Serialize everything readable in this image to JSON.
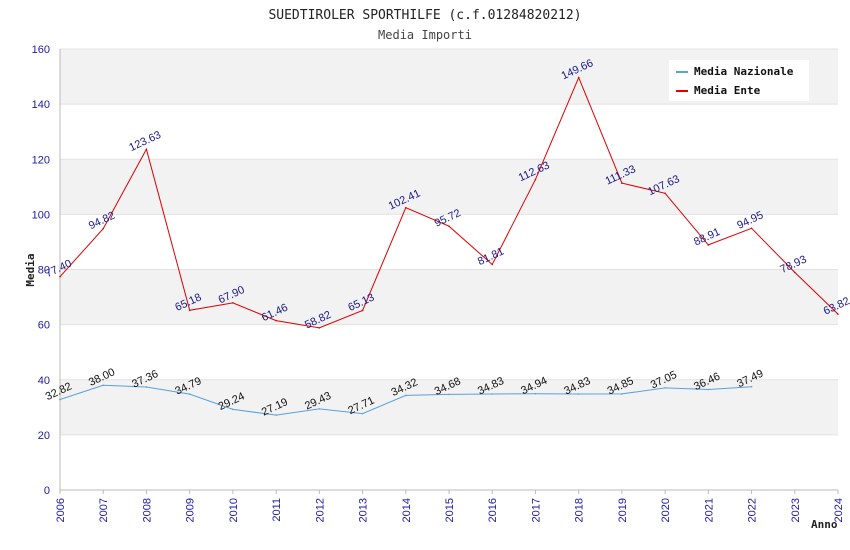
{
  "chart_data": {
    "type": "line",
    "title": "SUEDTIROLER SPORTHILFE (c.f.01284820212)",
    "subtitle": "Media Importi",
    "xlabel": "Anno",
    "ylabel": "Media",
    "ylim": [
      0,
      160
    ],
    "yticks": [
      "0",
      "20",
      "40",
      "60",
      "80",
      "100",
      "120",
      "140",
      "160"
    ],
    "x": [
      "2006",
      "2007",
      "2008",
      "2009",
      "2010",
      "2011",
      "2012",
      "2013",
      "2014",
      "2015",
      "2016",
      "2017",
      "2018",
      "2019",
      "2020",
      "2021",
      "2022",
      "2023",
      "2024"
    ],
    "series": [
      {
        "name": "Media Nazionale",
        "color": "#5aa0e0",
        "label_color": "#111111",
        "values": [
          32.82,
          38.0,
          37.36,
          34.79,
          29.24,
          27.19,
          29.43,
          27.71,
          34.32,
          34.68,
          34.83,
          34.94,
          34.83,
          34.85,
          37.05,
          36.46,
          37.49,
          null,
          null
        ],
        "labels": [
          "32.82",
          "38.00",
          "37.36",
          "34.79",
          "29.24",
          "27.19",
          "29.43",
          "27.71",
          "34.32",
          "34.68",
          "34.83",
          "34.94",
          "34.83",
          "34.85",
          "37.05",
          "36.46",
          "37.49",
          null,
          null
        ]
      },
      {
        "name": "Media Ente",
        "color": "#e00000",
        "label_color": "#1a1a8c",
        "values": [
          77.4,
          94.82,
          123.63,
          65.18,
          67.9,
          61.46,
          58.82,
          65.13,
          102.41,
          95.72,
          81.81,
          112.63,
          149.66,
          111.33,
          107.63,
          88.91,
          94.95,
          78.93,
          63.82
        ],
        "labels": [
          "77.40",
          "94.82",
          "123.63",
          "65.18",
          "67.90",
          "61.46",
          "58.82",
          "65.13",
          "102.41",
          "95.72",
          "81.81",
          "112.63",
          "149.66",
          "111.33",
          "107.63",
          "88.91",
          "94.95",
          "78.93",
          "63.82"
        ]
      }
    ],
    "grid": true,
    "legend": "top-right"
  }
}
